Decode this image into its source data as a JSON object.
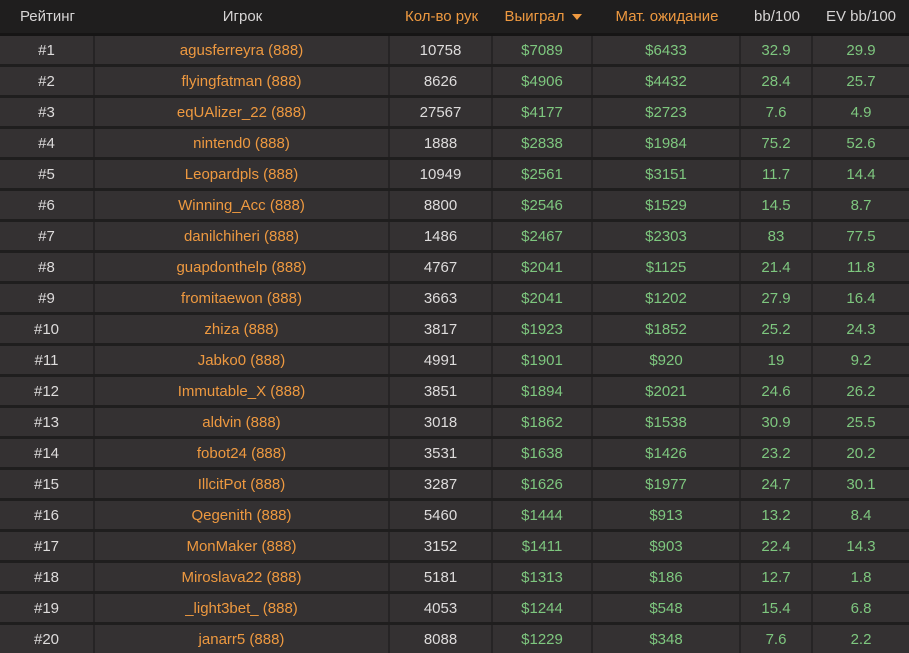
{
  "colors": {
    "accent_orange": "#ee9940",
    "value_green": "#7ec77f",
    "text_light": "#dedcdc",
    "row_bg": "#343132",
    "header_bg": "#1f1e1e"
  },
  "table": {
    "sort": {
      "column": "won",
      "direction": "desc"
    },
    "columns": [
      {
        "key": "rank",
        "label": "Рейтинг",
        "accent": false
      },
      {
        "key": "player",
        "label": "Игрок",
        "accent": false
      },
      {
        "key": "hands",
        "label": "Кол-во рук",
        "accent": true
      },
      {
        "key": "won",
        "label": "Выиграл",
        "accent": true
      },
      {
        "key": "expectation",
        "label": "Мат. ожидание",
        "accent": true
      },
      {
        "key": "bb100",
        "label": "bb/100",
        "accent": false
      },
      {
        "key": "ev_bb100",
        "label": "EV bb/100",
        "accent": false
      }
    ],
    "rows": [
      {
        "rank": "#1",
        "player": "agusferreyra (888)",
        "hands": "10758",
        "won": "$7089",
        "expectation": "$6433",
        "bb100": "32.9",
        "ev_bb100": "29.9"
      },
      {
        "rank": "#2",
        "player": "flyingfatman (888)",
        "hands": "8626",
        "won": "$4906",
        "expectation": "$4432",
        "bb100": "28.4",
        "ev_bb100": "25.7"
      },
      {
        "rank": "#3",
        "player": "eqUAlizer_22 (888)",
        "hands": "27567",
        "won": "$4177",
        "expectation": "$2723",
        "bb100": "7.6",
        "ev_bb100": "4.9"
      },
      {
        "rank": "#4",
        "player": "nintend0 (888)",
        "hands": "1888",
        "won": "$2838",
        "expectation": "$1984",
        "bb100": "75.2",
        "ev_bb100": "52.6"
      },
      {
        "rank": "#5",
        "player": "Leopardpls (888)",
        "hands": "10949",
        "won": "$2561",
        "expectation": "$3151",
        "bb100": "11.7",
        "ev_bb100": "14.4"
      },
      {
        "rank": "#6",
        "player": "Winning_Acc (888)",
        "hands": "8800",
        "won": "$2546",
        "expectation": "$1529",
        "bb100": "14.5",
        "ev_bb100": "8.7"
      },
      {
        "rank": "#7",
        "player": "danilchiheri (888)",
        "hands": "1486",
        "won": "$2467",
        "expectation": "$2303",
        "bb100": "83",
        "ev_bb100": "77.5"
      },
      {
        "rank": "#8",
        "player": "guapdonthelp (888)",
        "hands": "4767",
        "won": "$2041",
        "expectation": "$1125",
        "bb100": "21.4",
        "ev_bb100": "11.8"
      },
      {
        "rank": "#9",
        "player": "fromitaewon (888)",
        "hands": "3663",
        "won": "$2041",
        "expectation": "$1202",
        "bb100": "27.9",
        "ev_bb100": "16.4"
      },
      {
        "rank": "#10",
        "player": "zhiza (888)",
        "hands": "3817",
        "won": "$1923",
        "expectation": "$1852",
        "bb100": "25.2",
        "ev_bb100": "24.3"
      },
      {
        "rank": "#11",
        "player": "Jabko0 (888)",
        "hands": "4991",
        "won": "$1901",
        "expectation": "$920",
        "bb100": "19",
        "ev_bb100": "9.2"
      },
      {
        "rank": "#12",
        "player": "Immutable_X (888)",
        "hands": "3851",
        "won": "$1894",
        "expectation": "$2021",
        "bb100": "24.6",
        "ev_bb100": "26.2"
      },
      {
        "rank": "#13",
        "player": "aldvin (888)",
        "hands": "3018",
        "won": "$1862",
        "expectation": "$1538",
        "bb100": "30.9",
        "ev_bb100": "25.5"
      },
      {
        "rank": "#14",
        "player": "fobot24 (888)",
        "hands": "3531",
        "won": "$1638",
        "expectation": "$1426",
        "bb100": "23.2",
        "ev_bb100": "20.2"
      },
      {
        "rank": "#15",
        "player": "IllcitPot (888)",
        "hands": "3287",
        "won": "$1626",
        "expectation": "$1977",
        "bb100": "24.7",
        "ev_bb100": "30.1"
      },
      {
        "rank": "#16",
        "player": "Qegenith (888)",
        "hands": "5460",
        "won": "$1444",
        "expectation": "$913",
        "bb100": "13.2",
        "ev_bb100": "8.4"
      },
      {
        "rank": "#17",
        "player": "MonMaker (888)",
        "hands": "3152",
        "won": "$1411",
        "expectation": "$903",
        "bb100": "22.4",
        "ev_bb100": "14.3"
      },
      {
        "rank": "#18",
        "player": "Miroslava22 (888)",
        "hands": "5181",
        "won": "$1313",
        "expectation": "$186",
        "bb100": "12.7",
        "ev_bb100": "1.8"
      },
      {
        "rank": "#19",
        "player": "_light3bet_ (888)",
        "hands": "4053",
        "won": "$1244",
        "expectation": "$548",
        "bb100": "15.4",
        "ev_bb100": "6.8"
      },
      {
        "rank": "#20",
        "player": "janarr5 (888)",
        "hands": "8088",
        "won": "$1229",
        "expectation": "$348",
        "bb100": "7.6",
        "ev_bb100": "2.2"
      }
    ]
  }
}
